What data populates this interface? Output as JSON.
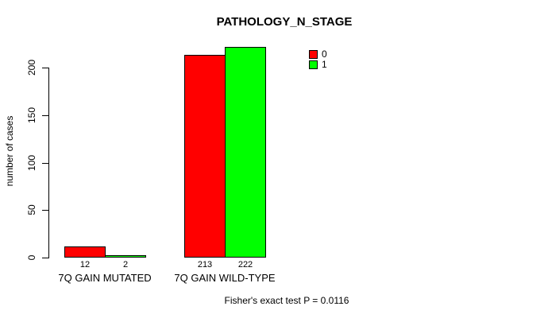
{
  "chart_data": {
    "type": "bar",
    "title": "PATHOLOGY_N_STAGE",
    "ylabel": "number of cases",
    "xlabel": "",
    "categories": [
      "7Q GAIN MUTATED",
      "7Q GAIN WILD-TYPE"
    ],
    "series": [
      {
        "name": "0",
        "color": "#FF0000",
        "values": [
          12,
          213
        ]
      },
      {
        "name": "1",
        "color": "#00FF00",
        "values": [
          2,
          222
        ]
      }
    ],
    "bar_value_labels": [
      [
        12,
        2
      ],
      [
        213,
        222
      ]
    ],
    "yticks": [
      0,
      50,
      100,
      150,
      200
    ],
    "ylim": [
      0,
      200
    ],
    "grid": false,
    "legend_position": "top-right",
    "annotation": "Fisher's exact test P = 0.0116"
  },
  "colors": {
    "series0": "#FF0000",
    "series1": "#00FF00",
    "axis": "#000000",
    "background": "#FFFFFF"
  }
}
